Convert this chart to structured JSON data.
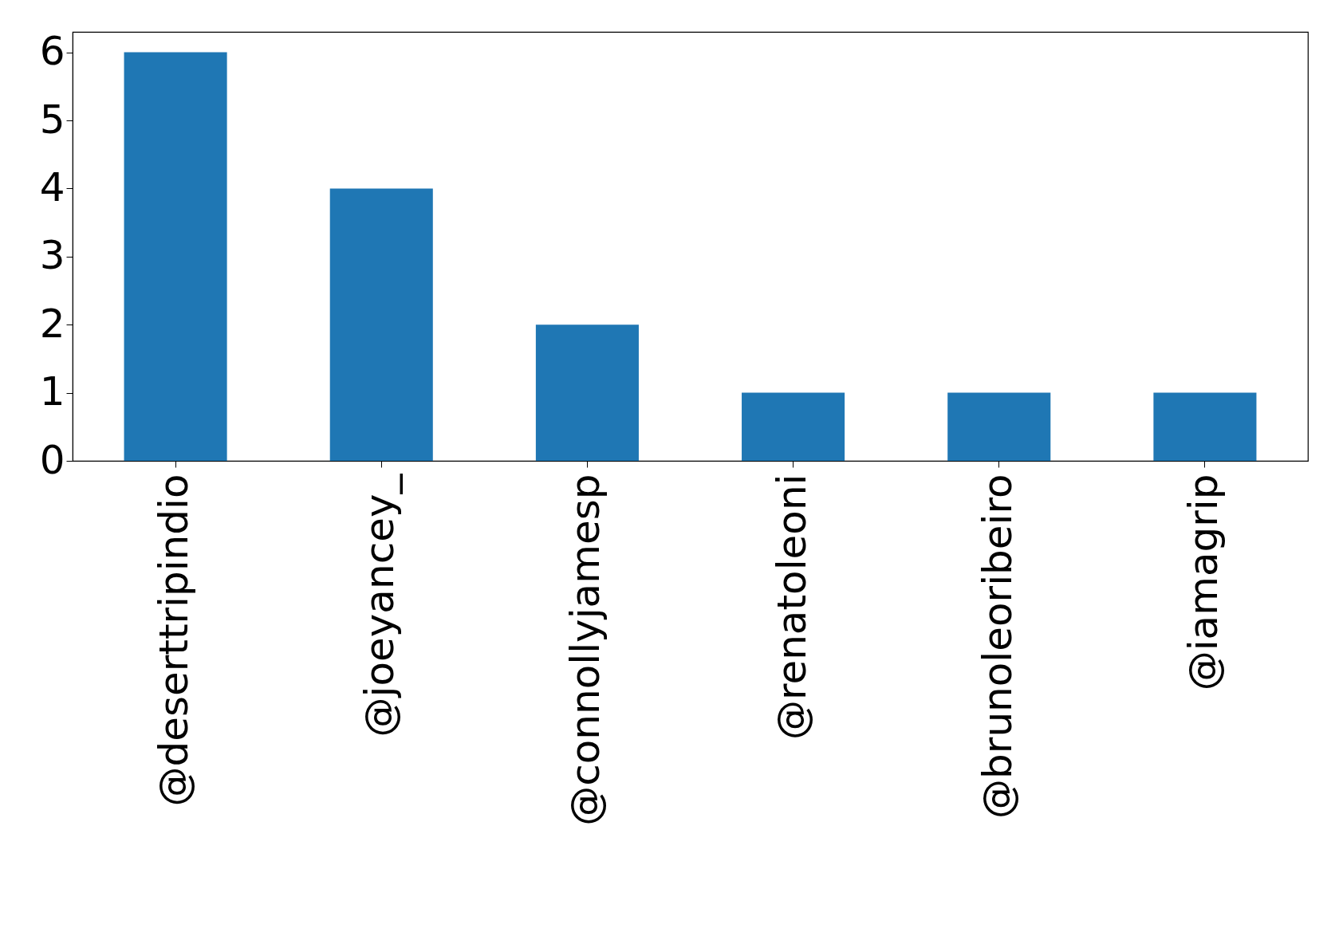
{
  "chart_data": {
    "type": "bar",
    "categories": [
      "@deserttripindio",
      "@joeyancey_",
      "@connollyjamesp",
      "@renatoleoni",
      "@brunoleoribeiro",
      "@iamagrip"
    ],
    "values": [
      6,
      4,
      2,
      1,
      1,
      1
    ],
    "color": "#1f77b4",
    "ylim": [
      0,
      6.3
    ],
    "yticks": [
      0,
      1,
      2,
      3,
      4,
      5,
      6
    ],
    "grid": false
  }
}
